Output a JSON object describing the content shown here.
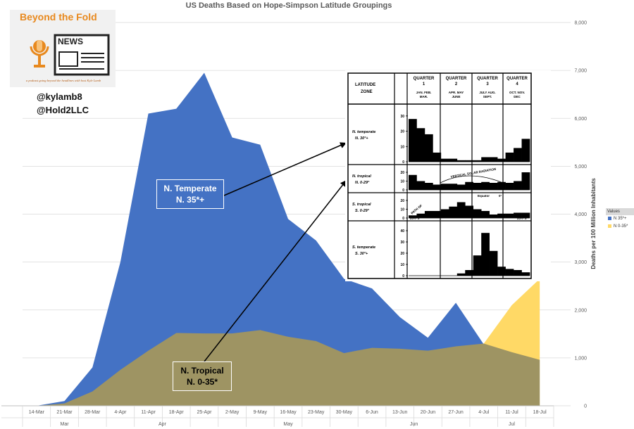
{
  "chart_data": {
    "type": "area",
    "title": "US Deaths Based on Hope-Simpson Latitude Groupings",
    "ylabel": "Deaths per 100 Million Inhabitants",
    "ylim": [
      0,
      8000
    ],
    "yticks": [
      "0",
      "1,000",
      "2,000",
      "3,000",
      "4,000",
      "5,000",
      "6,000",
      "7,000",
      "8,000"
    ],
    "grid": true,
    "legend_position": "right",
    "legend_title": "Values",
    "categories": [
      "14-Mar",
      "21-Mar",
      "28-Mar",
      "4-Apr",
      "11-Apr",
      "18-Apr",
      "25-Apr",
      "2-May",
      "9-May",
      "16-May",
      "23-May",
      "30-May",
      "6-Jun",
      "13-Jun",
      "20-Jun",
      "27-Jun",
      "4-Jul",
      "11-Jul",
      "18-Jul"
    ],
    "months": [
      {
        "label": "Mar",
        "from": 0,
        "to": 2
      },
      {
        "label": "Apr",
        "from": 3,
        "to": 6
      },
      {
        "label": "May",
        "from": 7,
        "to": 11
      },
      {
        "label": "Jun",
        "from": 12,
        "to": 15
      },
      {
        "label": "Jul",
        "from": 16,
        "to": 18
      }
    ],
    "series": [
      {
        "name": "N 35*+",
        "color": "#4472c4",
        "values": [
          0,
          100,
          800,
          3000,
          6100,
          6200,
          6950,
          5600,
          5450,
          3900,
          3450,
          2650,
          2450,
          1850,
          1420,
          2150,
          1280,
          null,
          null
        ]
      },
      {
        "name": "N 0-35*",
        "color": "#ffd966",
        "overlap_color": "#9e9463",
        "values": [
          0,
          50,
          300,
          750,
          1150,
          1520,
          1510,
          1510,
          1580,
          1440,
          1350,
          1100,
          1210,
          1190,
          1150,
          1240,
          1300,
          2100,
          2650
        ],
        "area_values_under_blue": [
          0,
          50,
          300,
          750,
          1150,
          1520,
          1510,
          1510,
          1580,
          1440,
          1350,
          1100,
          1210,
          1190,
          1150,
          1240,
          1300,
          1120,
          960
        ]
      }
    ]
  },
  "logo": {
    "title": "Beyond the Fold",
    "news": "NEWS",
    "tagline": "a podcast going beyond the headlines with host Kyle Lamb"
  },
  "handles": [
    "@kylamb8",
    "@Hold2LLC"
  ],
  "annotations": {
    "temperate": [
      "N. Temperate",
      "N. 35*+"
    ],
    "tropical": [
      "N. Tropical",
      "N. 0-35*"
    ]
  },
  "inset": {
    "header": {
      "zone": [
        "LATITUDE",
        "ZONE"
      ],
      "quarters": [
        {
          "label": [
            "QUARTER",
            "1"
          ],
          "months": [
            "JAN. FEB.",
            "MAR."
          ]
        },
        {
          "label": [
            "QUARTER",
            "2"
          ],
          "months": [
            "APR. MAY",
            "JUNE"
          ]
        },
        {
          "label": [
            "QUARTER",
            "3"
          ],
          "months": [
            "JULY AUG.",
            "SEPT."
          ]
        },
        {
          "label": [
            "QUARTER",
            "4"
          ],
          "months": [
            "OCT. NOV.",
            "DEC"
          ]
        }
      ]
    },
    "rows": [
      {
        "zone": [
          "N. temperate",
          "N. 30°+"
        ],
        "ticks": [
          "30",
          "20",
          "10",
          "0"
        ],
        "max": 35,
        "bars": [
          28,
          22,
          18,
          6,
          2,
          2,
          1,
          1,
          1,
          3,
          3,
          2,
          6,
          9,
          15
        ]
      },
      {
        "zone": [
          "N. tropical",
          "N. 0-29°"
        ],
        "ticks": [
          "20",
          "10",
          "0"
        ],
        "max": 24,
        "bars": [
          17,
          10,
          8,
          6,
          7,
          7,
          6,
          9,
          8,
          9,
          8,
          9,
          8,
          10,
          20
        ]
      },
      {
        "zone": [
          "S. tropical",
          "S. 0-29°"
        ],
        "ticks": [
          "20",
          "10",
          "0"
        ],
        "max": 24,
        "bars": [
          3,
          5,
          8,
          8,
          10,
          13,
          18,
          14,
          10,
          8,
          4,
          5,
          5,
          6,
          6
        ]
      },
      {
        "zone": [
          "S. temperate",
          "S. 30°+"
        ],
        "ticks": [
          "40",
          "30",
          "20",
          "10",
          "0"
        ],
        "max": 45,
        "bars": [
          0,
          0,
          0,
          0,
          0,
          0,
          2,
          5,
          18,
          38,
          22,
          8,
          6,
          5,
          3
        ]
      }
    ],
    "overlay_labels": [
      "VERTICAL SOLAR RADIATION",
      "23½°N",
      "Equator",
      "0°",
      "PATH OF",
      "23½°S",
      "23½°S"
    ]
  }
}
